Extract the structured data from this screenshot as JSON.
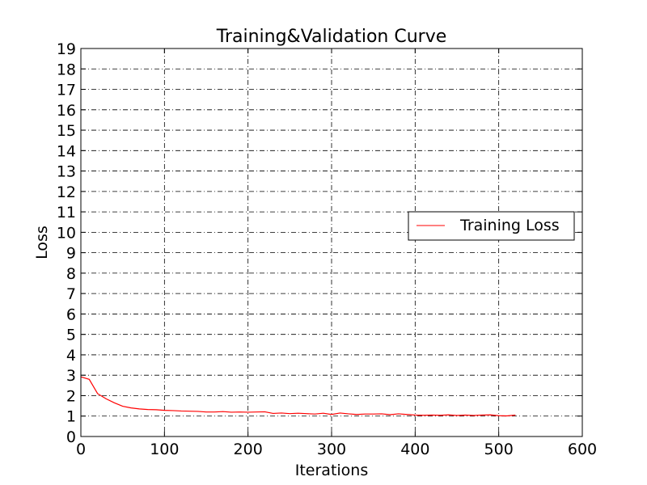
{
  "chart_data": {
    "type": "line",
    "title": "Training&Validation Curve",
    "xlabel": "Iterations",
    "ylabel": "Loss",
    "xlim": [
      0,
      600
    ],
    "ylim": [
      0,
      19
    ],
    "xticks": [
      0,
      100,
      200,
      300,
      400,
      500,
      600
    ],
    "yticks": [
      0,
      1,
      2,
      3,
      4,
      5,
      6,
      7,
      8,
      9,
      10,
      11,
      12,
      13,
      14,
      15,
      16,
      17,
      18,
      19
    ],
    "grid": true,
    "legend_position": "center-right",
    "series": [
      {
        "name": "Training Loss",
        "color": "#ff0000",
        "x": [
          0,
          10,
          20,
          30,
          40,
          50,
          60,
          70,
          80,
          90,
          100,
          110,
          120,
          130,
          140,
          150,
          160,
          170,
          180,
          190,
          200,
          210,
          220,
          230,
          240,
          250,
          260,
          270,
          280,
          290,
          300,
          310,
          320,
          330,
          340,
          350,
          360,
          370,
          380,
          390,
          400,
          410,
          420,
          430,
          440,
          450,
          460,
          470,
          480,
          490,
          500,
          510,
          520
        ],
        "y": [
          2.92,
          2.8,
          2.1,
          1.85,
          1.65,
          1.48,
          1.4,
          1.35,
          1.32,
          1.31,
          1.28,
          1.27,
          1.25,
          1.24,
          1.23,
          1.2,
          1.2,
          1.22,
          1.19,
          1.2,
          1.19,
          1.2,
          1.21,
          1.13,
          1.15,
          1.12,
          1.14,
          1.12,
          1.1,
          1.14,
          1.08,
          1.15,
          1.11,
          1.08,
          1.1,
          1.1,
          1.11,
          1.07,
          1.11,
          1.08,
          1.05,
          1.04,
          1.05,
          1.04,
          1.06,
          1.03,
          1.05,
          1.03,
          1.05,
          1.06,
          1.02,
          1.01,
          1.05
        ]
      }
    ]
  }
}
